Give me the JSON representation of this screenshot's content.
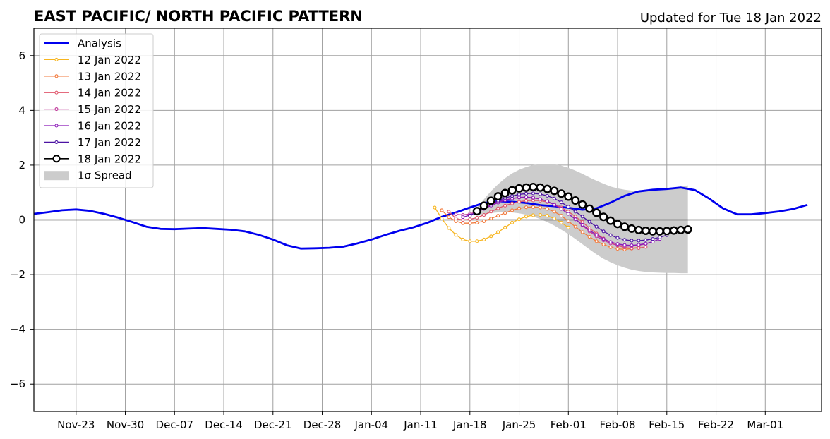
{
  "chart_data": {
    "type": "line",
    "title": "EAST PACIFIC/ NORTH PACIFIC PATTERN",
    "subtitle": "Updated for Tue 18 Jan 2022",
    "xlabel": "",
    "ylabel": "",
    "xlim": [
      "2021-11-17",
      "2022-03-09"
    ],
    "ylim": [
      -7,
      7
    ],
    "grid": true,
    "legend_position": "top-left",
    "x_ticks": [
      {
        "date": "2021-11-23",
        "label": "Nov-23"
      },
      {
        "date": "2021-11-30",
        "label": "Nov-30"
      },
      {
        "date": "2021-12-07",
        "label": "Dec-07"
      },
      {
        "date": "2021-12-14",
        "label": "Dec-14"
      },
      {
        "date": "2021-12-21",
        "label": "Dec-21"
      },
      {
        "date": "2021-12-28",
        "label": "Dec-28"
      },
      {
        "date": "2022-01-04",
        "label": "Jan-04"
      },
      {
        "date": "2022-01-11",
        "label": "Jan-11"
      },
      {
        "date": "2022-01-18",
        "label": "Jan-18"
      },
      {
        "date": "2022-01-25",
        "label": "Jan-25"
      },
      {
        "date": "2022-02-01",
        "label": "Feb-01"
      },
      {
        "date": "2022-02-08",
        "label": "Feb-08"
      },
      {
        "date": "2022-02-15",
        "label": "Feb-15"
      },
      {
        "date": "2022-02-22",
        "label": "Feb-22"
      },
      {
        "date": "2022-03-01",
        "label": "Mar-01"
      }
    ],
    "y_ticks": [
      {
        "value": -6,
        "label": "−6"
      },
      {
        "value": -4,
        "label": "−4"
      },
      {
        "value": -2,
        "label": "−2"
      },
      {
        "value": 0,
        "label": "0"
      },
      {
        "value": 2,
        "label": "2"
      },
      {
        "value": 4,
        "label": "4"
      },
      {
        "value": 6,
        "label": "6"
      }
    ],
    "analysis": {
      "name": "Analysis",
      "color": "#0000ee",
      "points": [
        [
          "2021-11-17",
          0.22
        ],
        [
          "2021-11-19",
          0.28
        ],
        [
          "2021-11-21",
          0.35
        ],
        [
          "2021-11-23",
          0.38
        ],
        [
          "2021-11-25",
          0.33
        ],
        [
          "2021-11-27",
          0.22
        ],
        [
          "2021-11-29",
          0.08
        ],
        [
          "2021-12-01",
          -0.08
        ],
        [
          "2021-12-03",
          -0.25
        ],
        [
          "2021-12-05",
          -0.33
        ],
        [
          "2021-12-07",
          -0.34
        ],
        [
          "2021-12-09",
          -0.32
        ],
        [
          "2021-12-11",
          -0.3
        ],
        [
          "2021-12-13",
          -0.33
        ],
        [
          "2021-12-15",
          -0.36
        ],
        [
          "2021-12-17",
          -0.42
        ],
        [
          "2021-12-19",
          -0.55
        ],
        [
          "2021-12-21",
          -0.72
        ],
        [
          "2021-12-23",
          -0.93
        ],
        [
          "2021-12-25",
          -1.05
        ],
        [
          "2021-12-27",
          -1.04
        ],
        [
          "2021-12-29",
          -1.02
        ],
        [
          "2021-12-31",
          -0.98
        ],
        [
          "2022-01-02",
          -0.86
        ],
        [
          "2022-01-04",
          -0.72
        ],
        [
          "2022-01-06",
          -0.55
        ],
        [
          "2022-01-08",
          -0.4
        ],
        [
          "2022-01-10",
          -0.27
        ],
        [
          "2022-01-12",
          -0.1
        ],
        [
          "2022-01-14",
          0.11
        ],
        [
          "2022-01-16",
          0.27
        ],
        [
          "2022-01-18",
          0.45
        ],
        [
          "2022-01-20",
          0.62
        ],
        [
          "2022-01-22",
          0.68
        ],
        [
          "2022-01-24",
          0.66
        ],
        [
          "2022-01-26",
          0.62
        ],
        [
          "2022-01-28",
          0.54
        ],
        [
          "2022-01-30",
          0.5
        ],
        [
          "2022-02-01",
          0.44
        ],
        [
          "2022-02-03",
          0.37
        ],
        [
          "2022-02-05",
          0.42
        ],
        [
          "2022-02-07",
          0.63
        ],
        [
          "2022-02-09",
          0.88
        ],
        [
          "2022-02-11",
          1.04
        ],
        [
          "2022-02-13",
          1.1
        ],
        [
          "2022-02-15",
          1.13
        ],
        [
          "2022-02-17",
          1.18
        ],
        [
          "2022-02-19",
          1.09
        ],
        [
          "2022-02-21",
          0.78
        ],
        [
          "2022-02-23",
          0.42
        ],
        [
          "2022-02-25",
          0.2
        ],
        [
          "2022-02-27",
          0.2
        ],
        [
          "2022-03-01",
          0.25
        ],
        [
          "2022-03-03",
          0.31
        ],
        [
          "2022-03-05",
          0.4
        ],
        [
          "2022-03-07",
          0.55
        ]
      ]
    },
    "forecasts": [
      {
        "name": "12 Jan 2022",
        "color": "#f7b51f",
        "start": "2022-01-13",
        "values": [
          0.45,
          0.05,
          -0.3,
          -0.55,
          -0.72,
          -0.78,
          -0.78,
          -0.72,
          -0.6,
          -0.45,
          -0.28,
          -0.1,
          0.02,
          0.12,
          0.17,
          0.18,
          0.15,
          0.05,
          -0.1,
          -0.28
        ]
      },
      {
        "name": "13 Jan 2022",
        "color": "#f27a3c",
        "start": "2022-01-14",
        "values": [
          0.35,
          0.1,
          -0.05,
          -0.12,
          -0.12,
          -0.1,
          -0.05,
          0.05,
          0.15,
          0.25,
          0.35,
          0.42,
          0.46,
          0.47,
          0.45,
          0.4,
          0.3,
          0.15,
          -0.05,
          -0.25,
          -0.45,
          -0.62,
          -0.78,
          -0.9,
          -1.0,
          -1.06,
          -1.08,
          -1.05,
          -1.0
        ]
      },
      {
        "name": "14 Jan 2022",
        "color": "#e0566b",
        "start": "2022-01-15",
        "values": [
          0.3,
          0.05,
          0.0,
          0.02,
          0.08,
          0.18,
          0.3,
          0.42,
          0.52,
          0.6,
          0.66,
          0.7,
          0.71,
          0.7,
          0.65,
          0.57,
          0.45,
          0.3,
          0.12,
          -0.08,
          -0.3,
          -0.5,
          -0.68,
          -0.83,
          -0.94,
          -1.01,
          -1.04,
          -1.03,
          -0.99
        ]
      },
      {
        "name": "15 Jan 2022",
        "color": "#c0399b",
        "start": "2022-01-16",
        "values": [
          0.2,
          0.18,
          0.22,
          0.3,
          0.42,
          0.55,
          0.65,
          0.72,
          0.78,
          0.81,
          0.82,
          0.8,
          0.76,
          0.68,
          0.56,
          0.41,
          0.22,
          0.02,
          -0.2,
          -0.42,
          -0.6,
          -0.75,
          -0.86,
          -0.93,
          -0.96,
          -0.96,
          -0.93,
          -0.88,
          -0.8
        ]
      },
      {
        "name": "16 Jan 2022",
        "color": "#8b19b8",
        "start": "2022-01-17",
        "values": [
          0.1,
          0.17,
          0.28,
          0.4,
          0.52,
          0.63,
          0.72,
          0.78,
          0.82,
          0.83,
          0.81,
          0.76,
          0.68,
          0.55,
          0.4,
          0.22,
          0.02,
          -0.18,
          -0.38,
          -0.55,
          -0.7,
          -0.81,
          -0.88,
          -0.92,
          -0.93,
          -0.91,
          -0.87,
          -0.8,
          -0.7
        ]
      },
      {
        "name": "17 Jan 2022",
        "color": "#4c13a3",
        "start": "2022-01-18",
        "values": [
          0.15,
          0.3,
          0.45,
          0.58,
          0.7,
          0.8,
          0.87,
          0.93,
          0.96,
          0.97,
          0.94,
          0.88,
          0.78,
          0.64,
          0.48,
          0.3,
          0.12,
          -0.07,
          -0.25,
          -0.42,
          -0.56,
          -0.66,
          -0.73,
          -0.76,
          -0.76,
          -0.74,
          -0.7,
          -0.64,
          -0.56
        ]
      },
      {
        "name": "18 Jan 2022",
        "color": "#000000",
        "start": "2022-01-19",
        "values": [
          0.32,
          0.52,
          0.7,
          0.86,
          0.98,
          1.08,
          1.15,
          1.18,
          1.2,
          1.18,
          1.13,
          1.06,
          0.96,
          0.85,
          0.71,
          0.56,
          0.41,
          0.26,
          0.11,
          -0.03,
          -0.15,
          -0.25,
          -0.32,
          -0.37,
          -0.4,
          -0.42,
          -0.42,
          -0.41,
          -0.39,
          -0.37,
          -0.35
        ]
      }
    ],
    "spread": {
      "name": "1σ Spread",
      "color": "#cccccc",
      "start": "2022-01-19",
      "upper": [
        0.45,
        0.75,
        1.05,
        1.3,
        1.52,
        1.7,
        1.83,
        1.93,
        2.0,
        2.04,
        2.05,
        2.03,
        1.98,
        1.9,
        1.8,
        1.68,
        1.55,
        1.43,
        1.32,
        1.22,
        1.15,
        1.1,
        1.07,
        1.06,
        1.07,
        1.09,
        1.12,
        1.15,
        1.18,
        1.22,
        1.26
      ],
      "lower": [
        0.15,
        0.2,
        0.25,
        0.27,
        0.28,
        0.27,
        0.24,
        0.19,
        0.12,
        0.03,
        -0.08,
        -0.21,
        -0.36,
        -0.52,
        -0.7,
        -0.89,
        -1.08,
        -1.26,
        -1.42,
        -1.55,
        -1.66,
        -1.75,
        -1.82,
        -1.87,
        -1.9,
        -1.92,
        -1.93,
        -1.94,
        -1.94,
        -1.95,
        -1.95
      ]
    },
    "legend": [
      "Analysis",
      "12 Jan 2022",
      "13 Jan 2022",
      "14 Jan 2022",
      "15 Jan 2022",
      "16 Jan 2022",
      "17 Jan 2022",
      "18 Jan 2022",
      "1σ Spread"
    ]
  }
}
